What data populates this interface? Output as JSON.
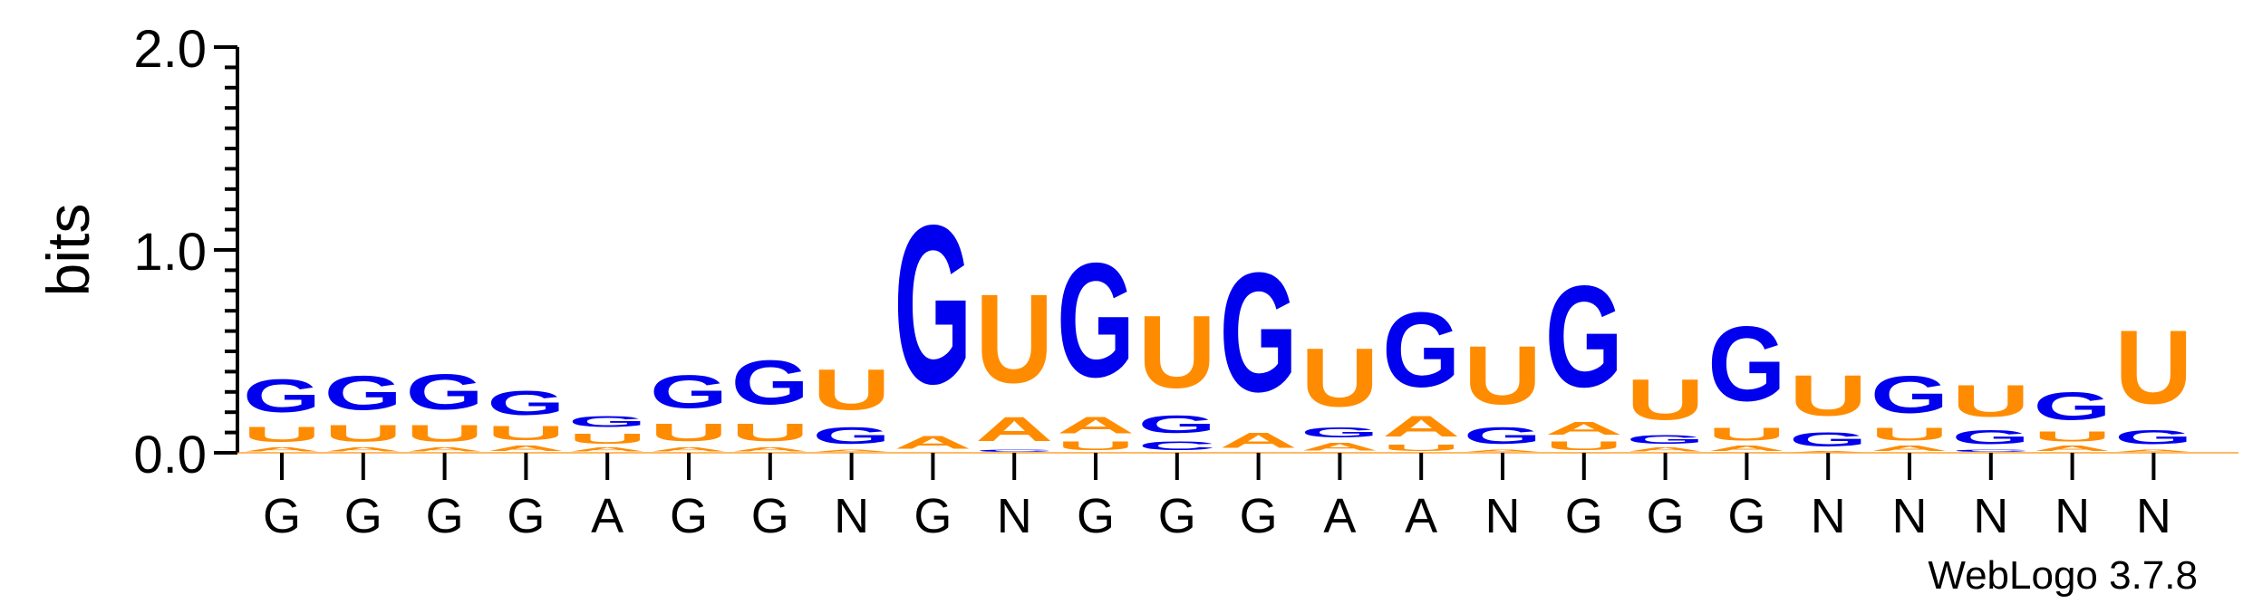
{
  "chart_data": {
    "type": "sequence-logo",
    "ylabel": "bits",
    "ylim": [
      0,
      2.0
    ],
    "yticks": [
      "0.0",
      "1.0",
      "2.0"
    ],
    "colors": {
      "G": "#0000ee",
      "U": "#ff8c00",
      "A": "#ff8c00",
      "C": "#0000ee"
    },
    "positions": [
      "G",
      "G",
      "G",
      "G",
      "A",
      "G",
      "G",
      "N",
      "G",
      "N",
      "G",
      "G",
      "G",
      "A",
      "A",
      "N",
      "G",
      "G",
      "G",
      "N",
      "N",
      "N",
      "N",
      "N"
    ],
    "stacks": [
      [
        {
          "letter": "A",
          "bits": 0.03
        },
        {
          "letter": "U",
          "bits": 0.12
        },
        {
          "letter": "G",
          "bits": 0.26
        }
      ],
      [
        {
          "letter": "A",
          "bits": 0.03
        },
        {
          "letter": "U",
          "bits": 0.13
        },
        {
          "letter": "G",
          "bits": 0.27
        }
      ],
      [
        {
          "letter": "A",
          "bits": 0.03
        },
        {
          "letter": "U",
          "bits": 0.13
        },
        {
          "letter": "G",
          "bits": 0.28
        }
      ],
      [
        {
          "letter": "A",
          "bits": 0.04
        },
        {
          "letter": "U",
          "bits": 0.11
        },
        {
          "letter": "G",
          "bits": 0.19
        }
      ],
      [
        {
          "letter": "A",
          "bits": 0.03
        },
        {
          "letter": "U",
          "bits": 0.08
        },
        {
          "letter": "G",
          "bits": 0.09
        }
      ],
      [
        {
          "letter": "A",
          "bits": 0.03
        },
        {
          "letter": "U",
          "bits": 0.14
        },
        {
          "letter": "G",
          "bits": 0.26
        }
      ],
      [
        {
          "letter": "A",
          "bits": 0.03
        },
        {
          "letter": "U",
          "bits": 0.14
        },
        {
          "letter": "G",
          "bits": 0.35
        }
      ],
      [
        {
          "letter": "A",
          "bits": 0.02
        },
        {
          "letter": "G",
          "bits": 0.13
        },
        {
          "letter": "U",
          "bits": 0.32
        }
      ],
      [
        {
          "letter": "A",
          "bits": 0.1
        },
        {
          "letter": "G",
          "bits": 1.25
        }
      ],
      [
        {
          "letter": "C",
          "bits": 0.02
        },
        {
          "letter": "A",
          "bits": 0.19
        },
        {
          "letter": "U",
          "bits": 0.7
        }
      ],
      [
        {
          "letter": "U",
          "bits": 0.07
        },
        {
          "letter": "A",
          "bits": 0.13
        },
        {
          "letter": "G",
          "bits": 0.9
        }
      ],
      [
        {
          "letter": "C",
          "bits": 0.07
        },
        {
          "letter": "G",
          "bits": 0.14
        },
        {
          "letter": "U",
          "bits": 0.57
        }
      ],
      [
        {
          "letter": "A",
          "bits": 0.12
        },
        {
          "letter": "G",
          "bits": 0.94
        }
      ],
      [
        {
          "letter": "A",
          "bits": 0.06
        },
        {
          "letter": "G",
          "bits": 0.08
        },
        {
          "letter": "U",
          "bits": 0.46
        }
      ],
      [
        {
          "letter": "U",
          "bits": 0.05
        },
        {
          "letter": "A",
          "bits": 0.16
        },
        {
          "letter": "G",
          "bits": 0.59
        }
      ],
      [
        {
          "letter": "A",
          "bits": 0.02
        },
        {
          "letter": "G",
          "bits": 0.13
        },
        {
          "letter": "U",
          "bits": 0.46
        }
      ],
      [
        {
          "letter": "U",
          "bits": 0.07
        },
        {
          "letter": "A",
          "bits": 0.1
        },
        {
          "letter": "G",
          "bits": 0.8
        }
      ],
      [
        {
          "letter": "A",
          "bits": 0.03
        },
        {
          "letter": "G",
          "bits": 0.07
        },
        {
          "letter": "U",
          "bits": 0.32
        }
      ],
      [
        {
          "letter": "A",
          "bits": 0.04
        },
        {
          "letter": "U",
          "bits": 0.1
        },
        {
          "letter": "G",
          "bits": 0.59
        }
      ],
      [
        {
          "letter": "A",
          "bits": 0.01
        },
        {
          "letter": "G",
          "bits": 0.11
        },
        {
          "letter": "U",
          "bits": 0.32
        }
      ],
      [
        {
          "letter": "A",
          "bits": 0.04
        },
        {
          "letter": "U",
          "bits": 0.1
        },
        {
          "letter": "G",
          "bits": 0.29
        }
      ],
      [
        {
          "letter": "C",
          "bits": 0.02
        },
        {
          "letter": "G",
          "bits": 0.11
        },
        {
          "letter": "U",
          "bits": 0.25
        }
      ],
      [
        {
          "letter": "A",
          "bits": 0.04
        },
        {
          "letter": "U",
          "bits": 0.08
        },
        {
          "letter": "G",
          "bits": 0.22
        }
      ],
      [
        {
          "letter": "A",
          "bits": 0.02
        },
        {
          "letter": "G",
          "bits": 0.11
        },
        {
          "letter": "U",
          "bits": 0.58
        }
      ]
    ]
  },
  "credit": "WebLogo 3.7.8"
}
